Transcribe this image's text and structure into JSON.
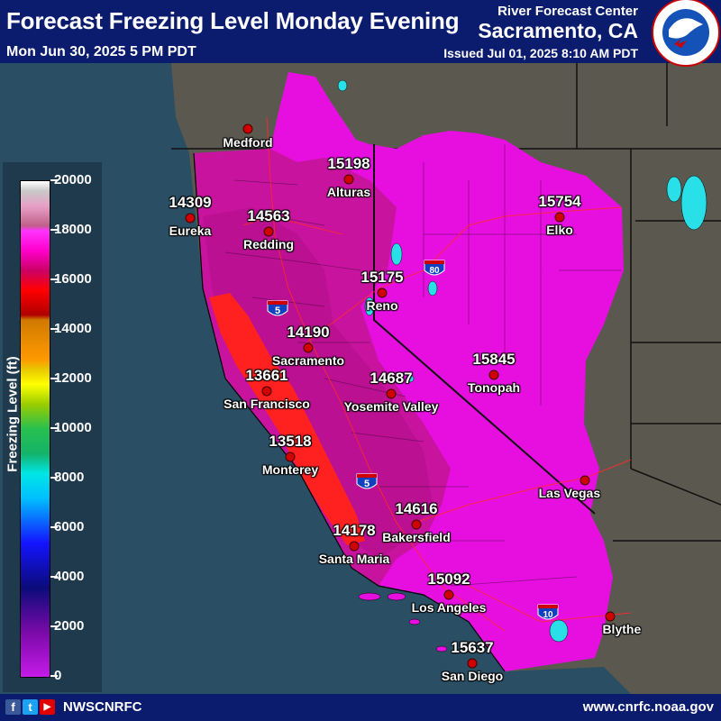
{
  "header": {
    "title": "Forecast Freezing Level Monday Evening",
    "valid_time": "Mon Jun 30, 2025 5 PM PDT",
    "org_line1": "River Forecast Center",
    "org_line2": "Sacramento, CA",
    "issued": "Issued Jul 01, 2025 8:10 AM PDT",
    "logo_text": "NATIONAL WEATHER SERVICE"
  },
  "legend": {
    "title": "Freezing Level (ft)",
    "ticks": [
      "20000",
      "18000",
      "16000",
      "14000",
      "12000",
      "10000",
      "8000",
      "6000",
      "4000",
      "2000",
      "0"
    ]
  },
  "highways": {
    "i80": "80",
    "i5_north": "5",
    "i5_south": "5",
    "i10": "10"
  },
  "stations": [
    {
      "name": "Medford",
      "value": ""
    },
    {
      "name": "Alturas",
      "value": "15198"
    },
    {
      "name": "Eureka",
      "value": "14309"
    },
    {
      "name": "Redding",
      "value": "14563"
    },
    {
      "name": "Elko",
      "value": "15754"
    },
    {
      "name": "Reno",
      "value": "15175"
    },
    {
      "name": "Sacramento",
      "value": "14190"
    },
    {
      "name": "Tonopah",
      "value": "15845"
    },
    {
      "name": "San Francisco",
      "value": "13661"
    },
    {
      "name": "Yosemite Valley",
      "value": "14687"
    },
    {
      "name": "Monterey",
      "value": "13518"
    },
    {
      "name": "Las Vegas",
      "value": ""
    },
    {
      "name": "Bakersfield",
      "value": "14616"
    },
    {
      "name": "Santa Maria",
      "value": "14178"
    },
    {
      "name": "Los Angeles",
      "value": "15092"
    },
    {
      "name": "Blythe",
      "value": ""
    },
    {
      "name": "San Diego",
      "value": "15637"
    }
  ],
  "footer": {
    "handle": "NWSCNRFC",
    "url": "www.cnrfc.noaa.gov",
    "facebook_icon": "f",
    "twitter_icon": "t",
    "youtube_icon": "▶"
  },
  "colors": {
    "header_bg": "#0b1b6e",
    "ocean": "#2a4e63",
    "land": "#5c5a50",
    "magenta": "#e60fe0",
    "pink": "#c80fa5",
    "coastal_red": "#ff1e1e"
  }
}
